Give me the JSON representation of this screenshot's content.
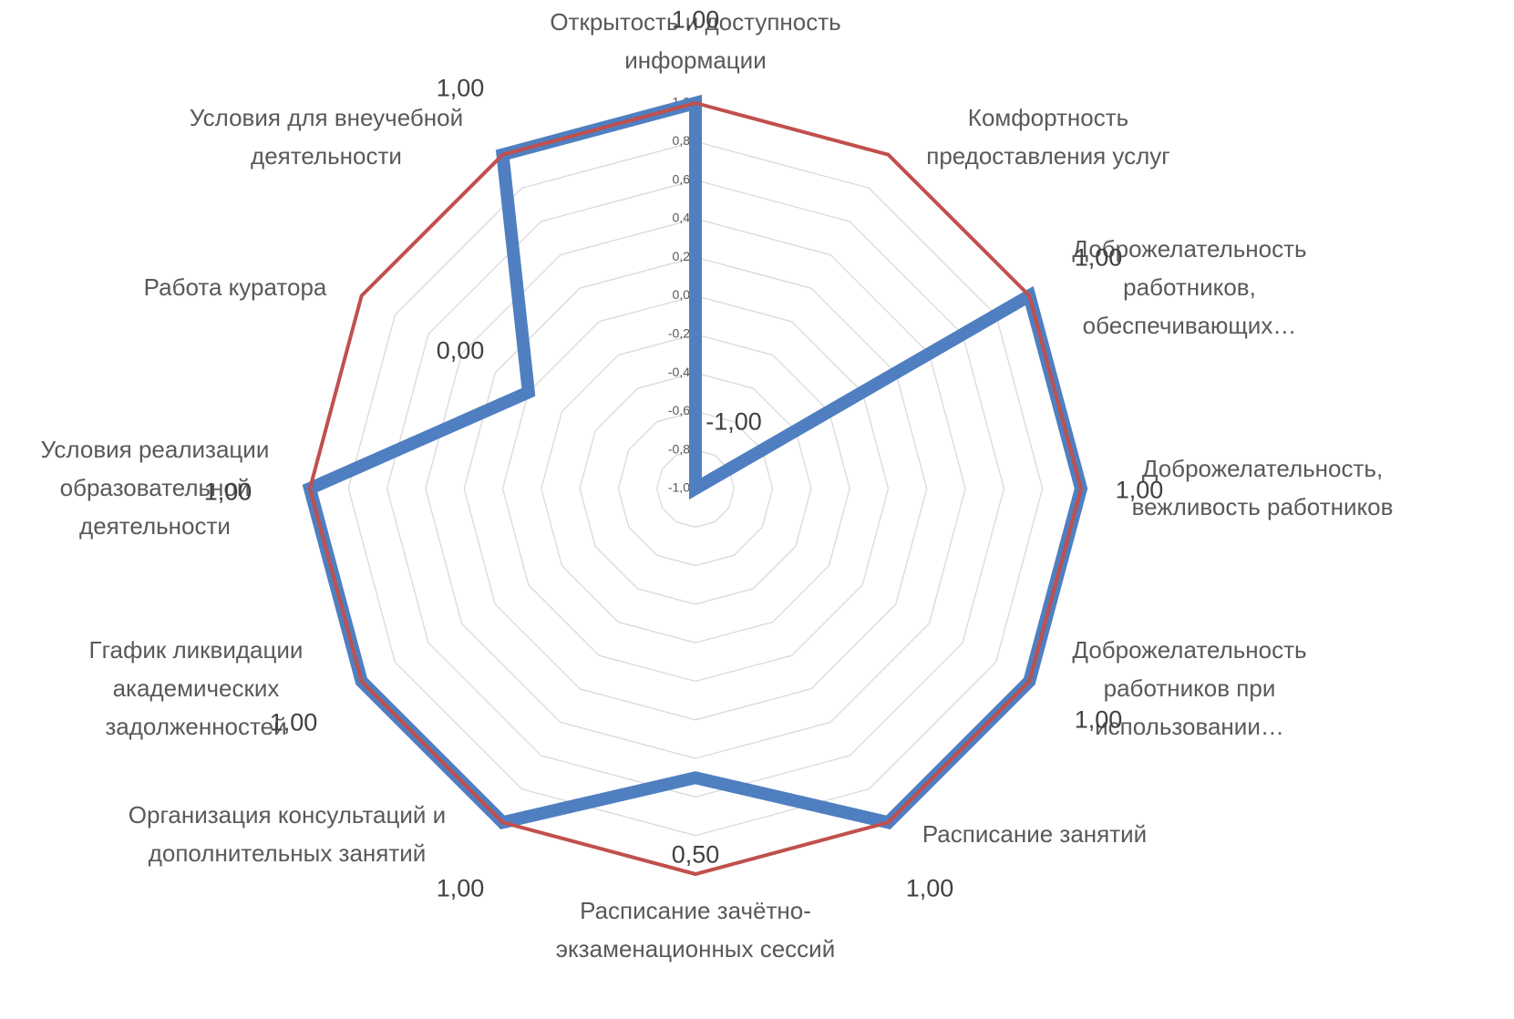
{
  "chart_data": {
    "type": "radar",
    "categories": [
      "Открытость и доступность информации",
      "Комфортность предоставления услуг",
      "Доброжелательность работников, обеспечивающих…",
      "Доброжелательность, вежливость работников",
      "Доброжелательность работников при использовании…",
      "Расписание занятий",
      "Расписание зачётно-экзаменационных сессий",
      "Организация консультаций и дополнительных занятий",
      "Ггафик ликвидации академических задолженностей",
      "Условия реализации образовательной деятельности",
      "Работа куратора",
      "Условия для внеучебной деятельности"
    ],
    "series": [
      {
        "color": "#4f7fc0",
        "values": [
          1,
          -1,
          1,
          1,
          1,
          1,
          0.5,
          1,
          1,
          1,
          0,
          1
        ],
        "value_labels": [
          "1,00",
          "-1,00",
          "1,00",
          "1,00",
          "1,00",
          "1,00",
          "0,50",
          "1,00",
          "1,00",
          "1,00",
          "0,00",
          "1,00"
        ]
      },
      {
        "color": "#c0504d",
        "values": [
          1,
          1,
          1,
          1,
          1,
          1,
          1,
          1,
          1,
          1,
          1,
          1
        ]
      }
    ],
    "ylim": [
      -1,
      1
    ],
    "yticks": [
      {
        "value": -1,
        "label": "-1,0"
      },
      {
        "value": -0.8,
        "label": "-0,8"
      },
      {
        "value": -0.6,
        "label": "-0,6"
      },
      {
        "value": -0.4,
        "label": "-0,4"
      },
      {
        "value": -0.2,
        "label": "-0,2"
      },
      {
        "value": 0,
        "label": "0,0"
      },
      {
        "value": 0.2,
        "label": "0,2"
      },
      {
        "value": 0.4,
        "label": "0,4"
      },
      {
        "value": 0.6,
        "label": "0,6"
      },
      {
        "value": 0.8,
        "label": "0,8"
      },
      {
        "value": 1,
        "label": "1,0"
      }
    ],
    "grid": true
  }
}
